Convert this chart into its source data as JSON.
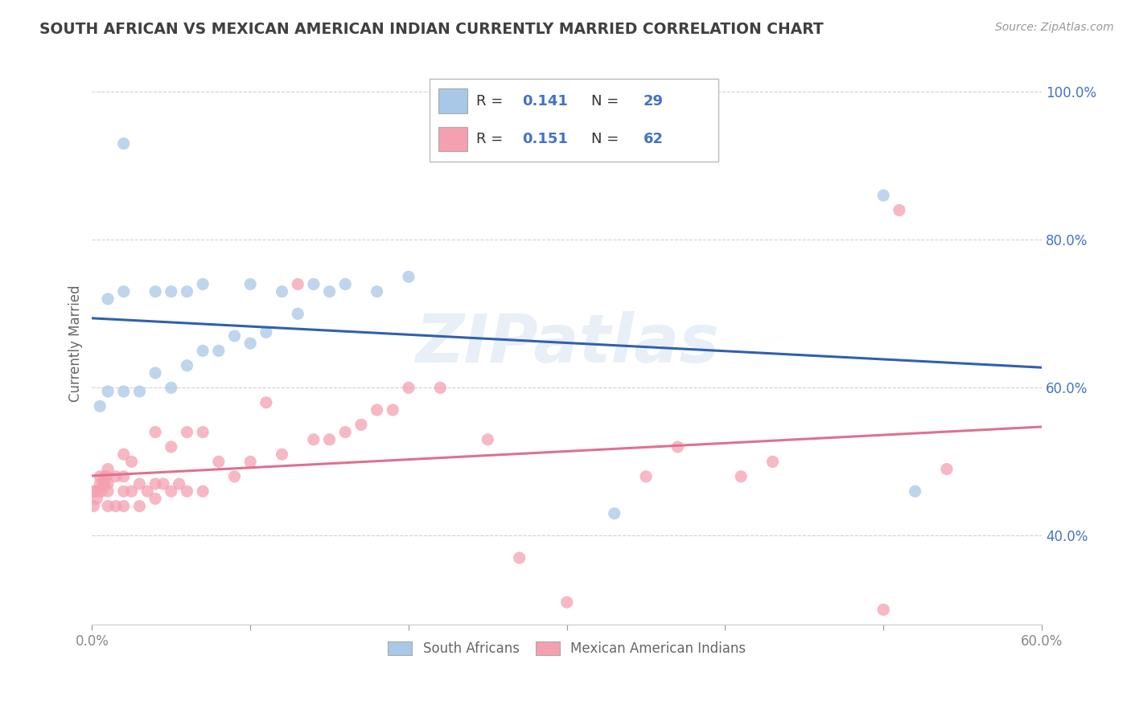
{
  "title": "SOUTH AFRICAN VS MEXICAN AMERICAN INDIAN CURRENTLY MARRIED CORRELATION CHART",
  "source_text": "Source: ZipAtlas.com",
  "ylabel": "Currently Married",
  "xlim": [
    0.0,
    0.6
  ],
  "ylim": [
    0.28,
    1.04
  ],
  "xticks": [
    0.0,
    0.1,
    0.2,
    0.3,
    0.4,
    0.5,
    0.6
  ],
  "xticklabels_show": [
    "0.0%",
    "",
    "",
    "",
    "",
    "",
    "60.0%"
  ],
  "yticks": [
    0.4,
    0.6,
    0.8,
    1.0
  ],
  "yticklabels": [
    "40.0%",
    "60.0%",
    "80.0%",
    "100.0%"
  ],
  "blue_scatter_color": "#a8c8e8",
  "pink_scatter_color": "#f4a0b0",
  "blue_line_color": "#3060b0",
  "pink_line_color": "#e07090",
  "legend_text_color": "#4472c4",
  "watermark": "ZIPatlas",
  "blue_x": [
    0.005,
    0.01,
    0.01,
    0.02,
    0.02,
    0.02,
    0.03,
    0.04,
    0.04,
    0.05,
    0.05,
    0.06,
    0.06,
    0.07,
    0.07,
    0.08,
    0.09,
    0.1,
    0.1,
    0.11,
    0.12,
    0.13,
    0.14,
    0.15,
    0.16,
    0.18,
    0.2,
    0.33,
    0.5,
    0.52
  ],
  "blue_y": [
    0.575,
    0.595,
    0.72,
    0.595,
    0.73,
    0.93,
    0.595,
    0.62,
    0.73,
    0.6,
    0.73,
    0.63,
    0.73,
    0.65,
    0.74,
    0.65,
    0.67,
    0.66,
    0.74,
    0.675,
    0.73,
    0.7,
    0.74,
    0.73,
    0.74,
    0.73,
    0.75,
    0.43,
    0.86,
    0.46
  ],
  "pink_x": [
    0.001,
    0.001,
    0.002,
    0.003,
    0.004,
    0.005,
    0.005,
    0.006,
    0.007,
    0.008,
    0.008,
    0.009,
    0.01,
    0.01,
    0.01,
    0.01,
    0.015,
    0.015,
    0.02,
    0.02,
    0.02,
    0.02,
    0.025,
    0.025,
    0.03,
    0.03,
    0.035,
    0.04,
    0.04,
    0.04,
    0.045,
    0.05,
    0.05,
    0.055,
    0.06,
    0.06,
    0.07,
    0.07,
    0.08,
    0.09,
    0.1,
    0.11,
    0.12,
    0.13,
    0.14,
    0.15,
    0.16,
    0.17,
    0.18,
    0.19,
    0.2,
    0.22,
    0.25,
    0.27,
    0.3,
    0.35,
    0.37,
    0.41,
    0.43,
    0.5,
    0.51,
    0.54
  ],
  "pink_y": [
    0.44,
    0.46,
    0.46,
    0.45,
    0.46,
    0.47,
    0.48,
    0.46,
    0.47,
    0.47,
    0.48,
    0.48,
    0.44,
    0.46,
    0.47,
    0.49,
    0.44,
    0.48,
    0.44,
    0.46,
    0.48,
    0.51,
    0.46,
    0.5,
    0.44,
    0.47,
    0.46,
    0.45,
    0.47,
    0.54,
    0.47,
    0.46,
    0.52,
    0.47,
    0.46,
    0.54,
    0.46,
    0.54,
    0.5,
    0.48,
    0.5,
    0.58,
    0.51,
    0.74,
    0.53,
    0.53,
    0.54,
    0.55,
    0.57,
    0.57,
    0.6,
    0.6,
    0.53,
    0.37,
    0.31,
    0.48,
    0.52,
    0.48,
    0.5,
    0.3,
    0.84,
    0.49
  ],
  "bg_color": "#ffffff",
  "grid_color": "#cccccc",
  "title_color": "#404040",
  "axis_color": "#666666",
  "tick_color": "#888888"
}
